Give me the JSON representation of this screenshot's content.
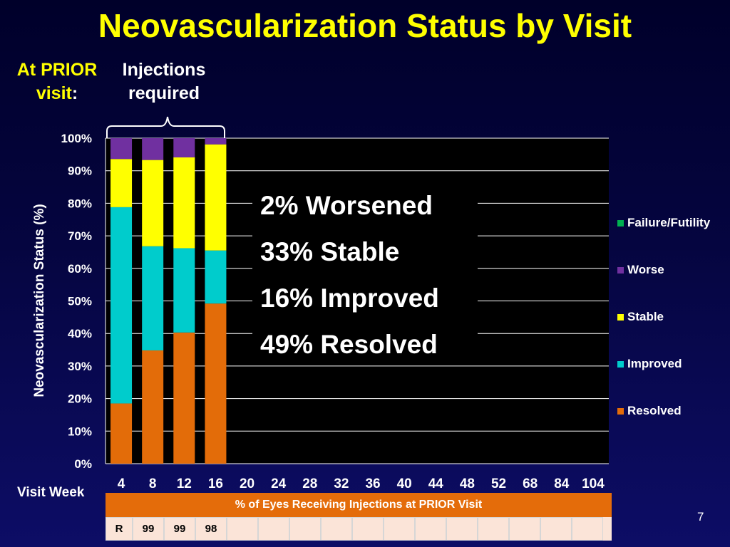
{
  "title": "Neovascularization Status by Visit",
  "prior_label": {
    "line1": "At PRIOR",
    "line2_yellow": "visit",
    "line2_white": ":"
  },
  "injections_label": {
    "line1": "Injections",
    "line2": "required"
  },
  "visit_week_label": "Visit Week",
  "page_number": "7",
  "annotations": [
    "2% Worsened",
    "33% Stable",
    "16% Improved",
    "49% Resolved"
  ],
  "table": {
    "header": "% of Eyes Receiving Injections at PRIOR Visit",
    "row_label": "R",
    "values": [
      "99",
      "99",
      "98",
      "",
      "",
      "",
      "",
      "",
      "",
      "",
      "",
      "",
      "",
      "",
      ""
    ]
  },
  "chart_data": {
    "type": "bar",
    "stacked": true,
    "ylabel": "Neovascularization Status (%)",
    "xlabel": "Visit Week",
    "categories": [
      "4",
      "8",
      "12",
      "16",
      "20",
      "24",
      "28",
      "32",
      "36",
      "40",
      "44",
      "48",
      "52",
      "68",
      "84",
      "104"
    ],
    "y_ticks": [
      "0%",
      "10%",
      "20%",
      "30%",
      "40%",
      "50%",
      "60%",
      "70%",
      "80%",
      "90%",
      "100%"
    ],
    "ylim": [
      0,
      100
    ],
    "grid": true,
    "legend_position": "right",
    "colors": {
      "Resolved": "#e36c09",
      "Improved": "#00cccc",
      "Stable": "#ffff00",
      "Worse": "#7030a0",
      "Failure/Futility": "#00b050"
    },
    "legend_order": [
      "Failure/Futility",
      "Worse",
      "Stable",
      "Improved",
      "Resolved"
    ],
    "series": [
      {
        "name": "Resolved",
        "values": [
          18.5,
          34.8,
          40.3,
          49.2,
          null,
          null,
          null,
          null,
          null,
          null,
          null,
          null,
          null,
          null,
          null,
          null
        ]
      },
      {
        "name": "Improved",
        "values": [
          60.3,
          32.0,
          25.9,
          16.3,
          null,
          null,
          null,
          null,
          null,
          null,
          null,
          null,
          null,
          null,
          null,
          null
        ]
      },
      {
        "name": "Stable",
        "values": [
          14.8,
          26.5,
          27.9,
          32.6,
          null,
          null,
          null,
          null,
          null,
          null,
          null,
          null,
          null,
          null,
          null,
          null
        ]
      },
      {
        "name": "Worse",
        "values": [
          6.4,
          6.7,
          5.9,
          1.9,
          null,
          null,
          null,
          null,
          null,
          null,
          null,
          null,
          null,
          null,
          null,
          null
        ]
      },
      {
        "name": "Failure/Futility",
        "values": [
          0,
          0,
          0,
          0,
          null,
          null,
          null,
          null,
          null,
          null,
          null,
          null,
          null,
          null,
          null,
          null
        ]
      }
    ]
  }
}
